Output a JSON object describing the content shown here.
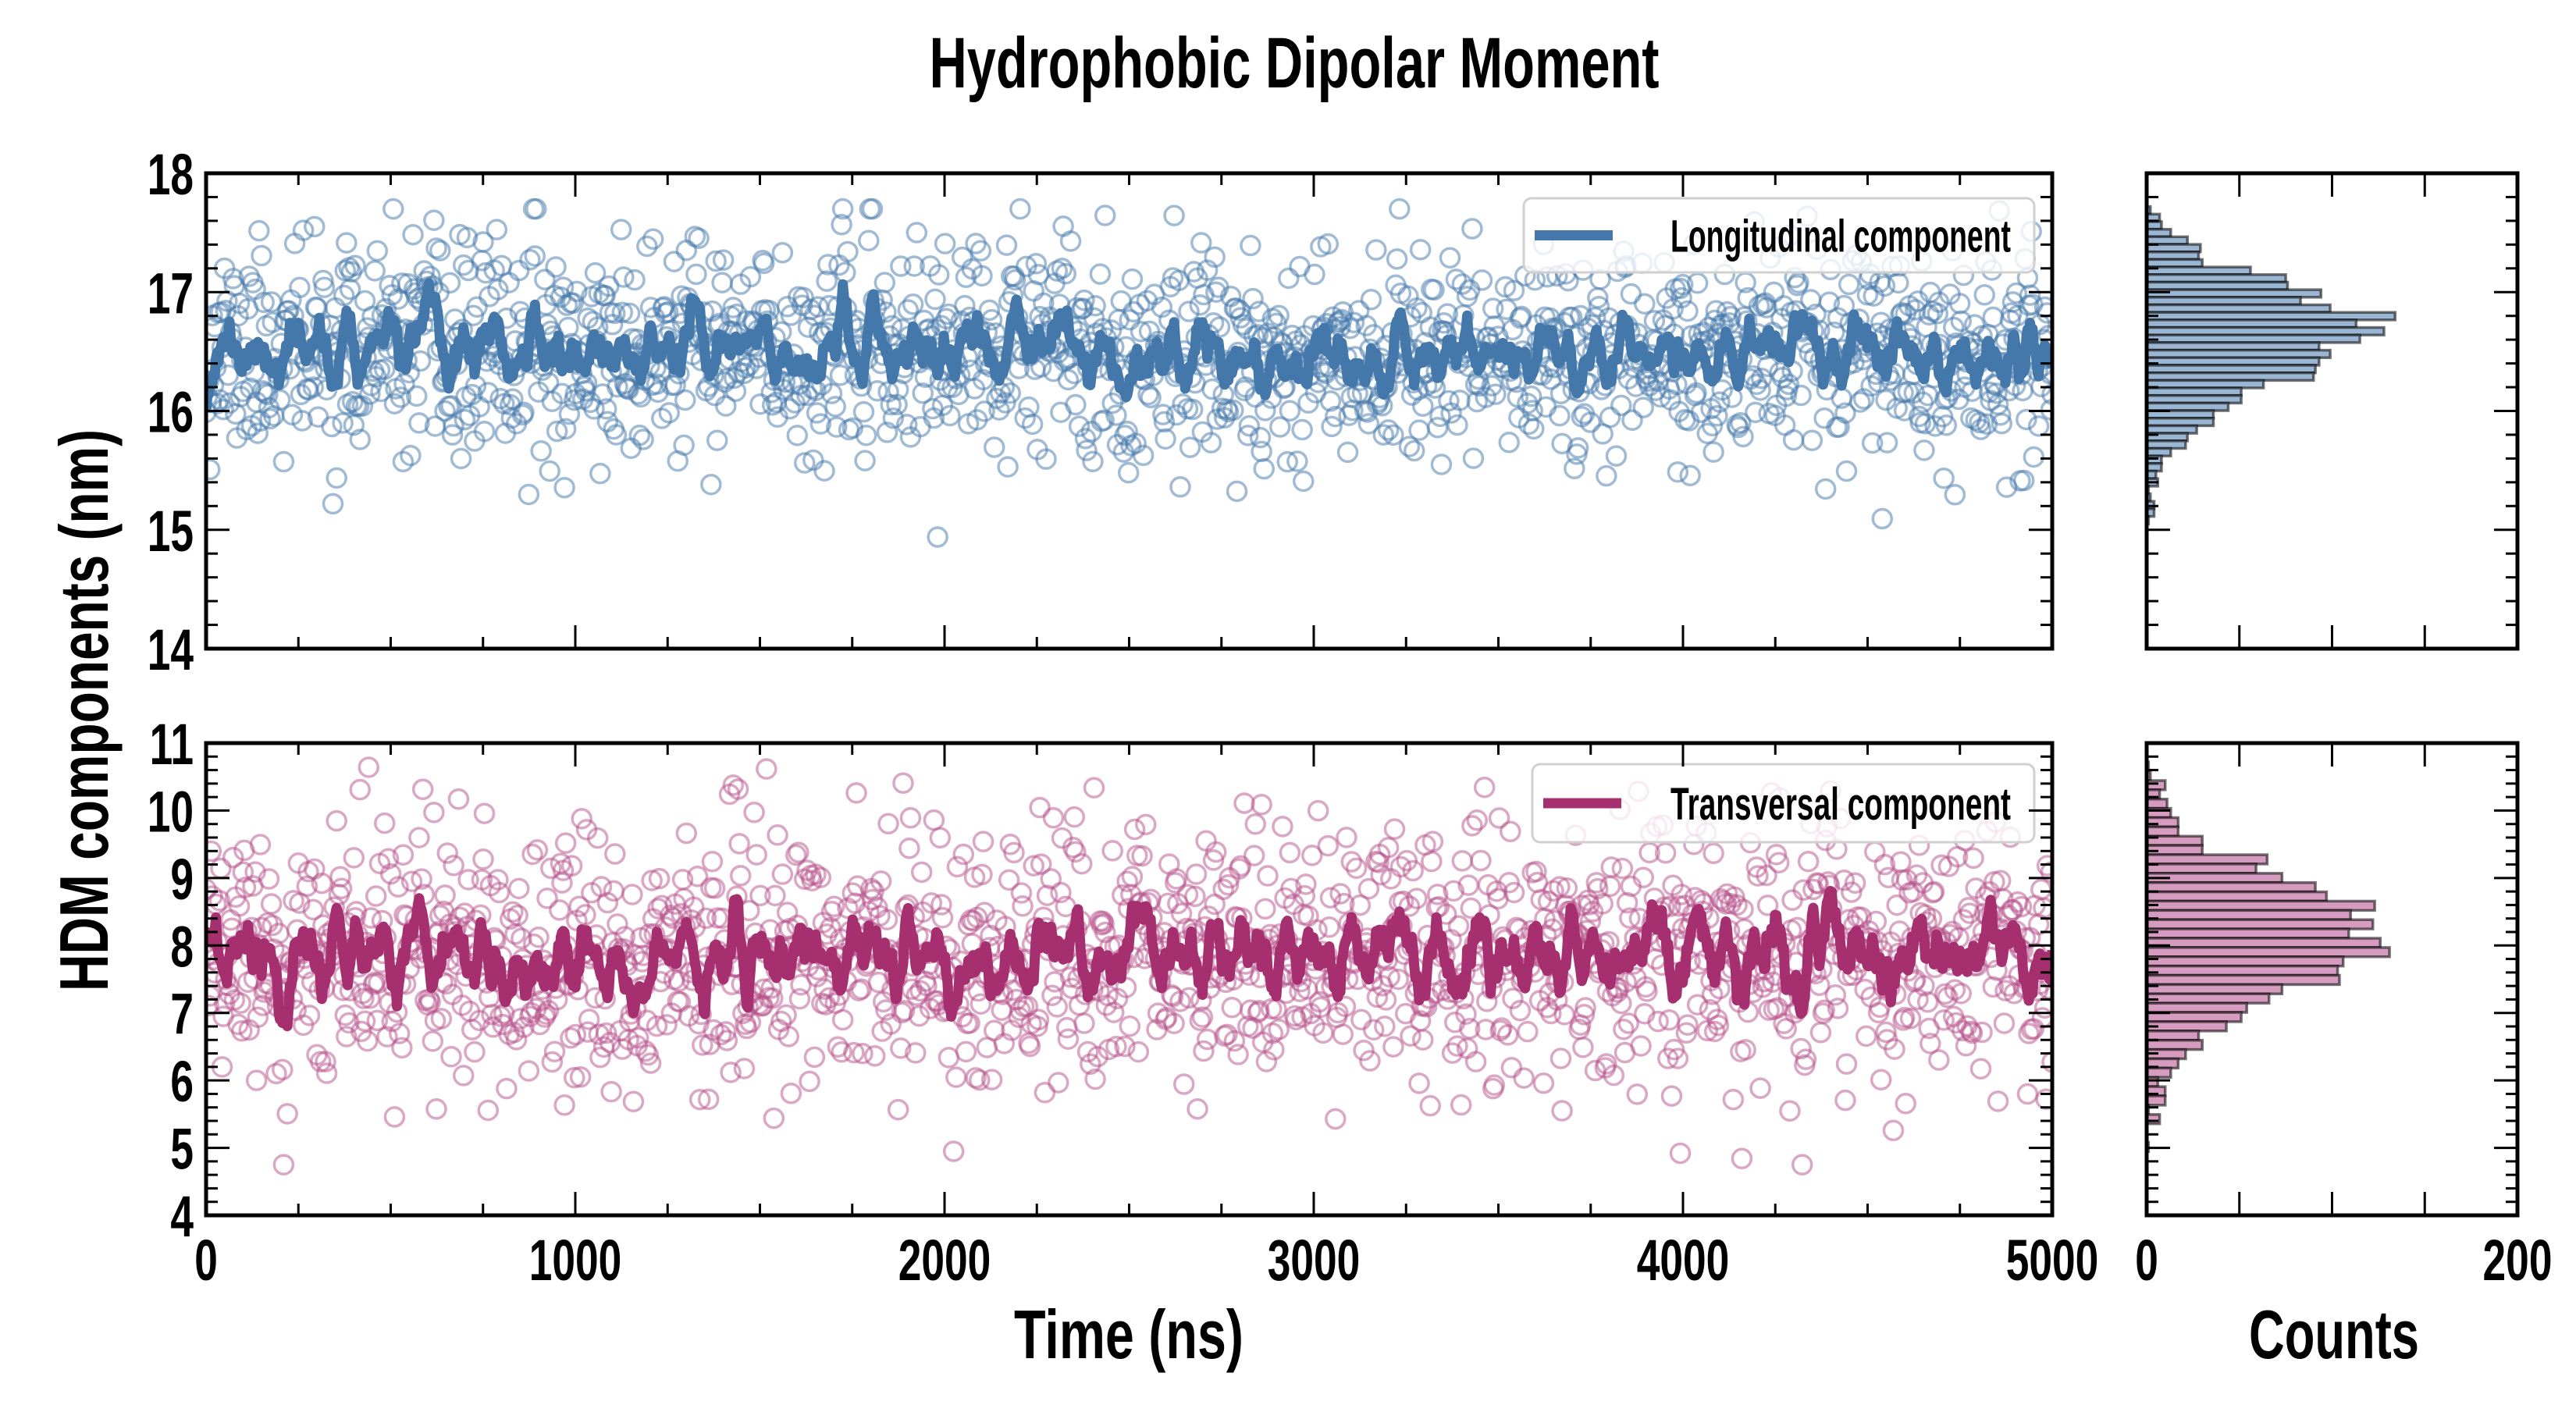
{
  "chart_data": [
    {
      "type": "scatter",
      "panel": "top-main",
      "title": "Hydrophobic Dipolar Moment",
      "xlabel": "Time (ns)",
      "ylabel": "HDM components (nm)",
      "xlim": [
        0,
        5000
      ],
      "ylim": [
        14,
        18
      ],
      "xticks": [
        "0",
        "1000",
        "2000",
        "3000",
        "4000",
        "5000"
      ],
      "yticks": [
        "14",
        "15",
        "16",
        "17",
        "18"
      ],
      "legend": {
        "label": "Longitudinal component",
        "placement": "top-right"
      },
      "series": {
        "name": "Longitudinal component",
        "n_points": 1500,
        "mean": 16.5,
        "std": 0.45,
        "seed": 11,
        "running_avg_window": 9,
        "min": 14.9,
        "max": 17.7
      },
      "colors": {
        "line": "#4477aa",
        "marker": "#4477aa",
        "hist_fill": "#9bb6d3"
      }
    },
    {
      "type": "scatter",
      "panel": "bottom-main",
      "xlim": [
        0,
        5000
      ],
      "ylim": [
        4,
        11
      ],
      "yticks": [
        "4",
        "5",
        "6",
        "7",
        "8",
        "9",
        "10",
        "11"
      ],
      "legend": {
        "label": "Transversal component",
        "placement": "top-right"
      },
      "series": {
        "name": "Transversal component",
        "n_points": 1500,
        "mean": 7.85,
        "std": 0.95,
        "seed": 29,
        "running_avg_window": 9,
        "min": 4.75,
        "max": 10.8
      },
      "colors": {
        "line": "#a52f6f",
        "marker": "#b5508a",
        "hist_fill": "#d69cbf"
      }
    },
    {
      "type": "bar",
      "orientation": "horizontal",
      "panel": "top-histogram",
      "xlabel": "Counts",
      "xlim": [
        0,
        200
      ],
      "ylim": [
        14,
        18
      ],
      "xticks": [
        "0",
        "200"
      ],
      "bin_top": 17.72,
      "bin_width": 0.0636,
      "counts": [
        2,
        7,
        8,
        13,
        22,
        29,
        28,
        30,
        56,
        75,
        76,
        94,
        83,
        99,
        134,
        113,
        128,
        115,
        93,
        99,
        93,
        91,
        90,
        63,
        51,
        51,
        44,
        36,
        36,
        27,
        22,
        21,
        13,
        8,
        8,
        5,
        6,
        1,
        2,
        4,
        4,
        1
      ]
    },
    {
      "type": "bar",
      "orientation": "horizontal",
      "panel": "bottom-histogram",
      "xlim": [
        0,
        200
      ],
      "ylim": [
        4,
        11
      ],
      "bin_top": 10.72,
      "bin_width": 0.1375,
      "counts": [
        1,
        2,
        10,
        7,
        11,
        13,
        17,
        17,
        30,
        30,
        65,
        59,
        73,
        91,
        97,
        123,
        110,
        122,
        109,
        126,
        131,
        106,
        103,
        104,
        73,
        66,
        54,
        51,
        43,
        28,
        30,
        21,
        17,
        13,
        6,
        10,
        10,
        1,
        7,
        0,
        0,
        1
      ]
    }
  ]
}
